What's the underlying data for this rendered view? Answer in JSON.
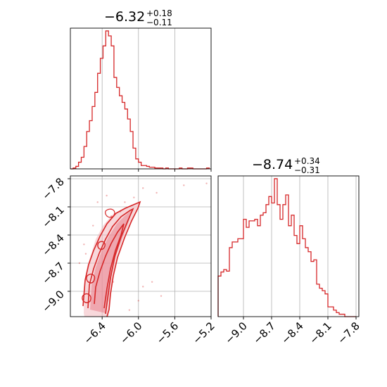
{
  "chart_data": [
    {
      "type": "histogram",
      "panel": "diag-1",
      "title_main": "−6.32",
      "title_sup": "+0.18",
      "title_sub": "−0.11",
      "xlim": [
        -6.75,
        -5.2
      ],
      "xticks": [
        -6.4,
        -6.0,
        -5.6,
        -5.2
      ],
      "color": "#d62728",
      "bins": [
        -6.75,
        -6.72,
        -6.69,
        -6.66,
        -6.63,
        -6.6,
        -6.57,
        -6.54,
        -6.51,
        -6.48,
        -6.45,
        -6.42,
        -6.39,
        -6.36,
        -6.33,
        -6.3,
        -6.27,
        -6.24,
        -6.21,
        -6.18,
        -6.15,
        -6.12,
        -6.09,
        -6.06,
        -6.03,
        -6.0,
        -5.97,
        -5.94,
        -5.91,
        -5.88,
        -5.85,
        -5.82,
        -5.79,
        -5.76,
        -5.73,
        -5.7,
        -5.67,
        -5.64,
        -5.61,
        -5.58,
        -5.55,
        -5.52,
        -5.49,
        -5.46,
        -5.43,
        -5.4,
        -5.37,
        -5.34,
        -5.31,
        -5.28,
        -5.25,
        -5.22
      ],
      "counts": [
        0,
        1,
        3,
        8,
        14,
        27,
        45,
        58,
        75,
        92,
        115,
        133,
        148,
        166,
        160,
        148,
        110,
        98,
        88,
        80,
        72,
        60,
        45,
        25,
        12,
        8,
        4,
        4,
        3,
        2,
        2,
        1,
        1,
        1,
        0,
        1,
        0,
        0,
        0,
        0,
        1,
        0,
        0,
        1,
        1,
        0,
        0,
        0,
        0,
        0,
        1
      ]
    },
    {
      "type": "scatter-contour",
      "panel": "lower-2-1",
      "xlim": [
        -6.75,
        -5.2
      ],
      "ylim": [
        -9.27,
        -7.77
      ],
      "xticks": [
        -6.4,
        -6.0,
        -5.6,
        -5.2
      ],
      "xtick_labels": [
        "−6.4",
        "−6.0",
        "−5.6",
        "−5.2"
      ],
      "yticks": [
        -7.8,
        -8.1,
        -8.4,
        -8.7,
        -9.0
      ],
      "ytick_labels": [
        "−7.8",
        "−8.1",
        "−8.4",
        "−8.7",
        "−9.0"
      ],
      "color": "#d62728",
      "points": [
        [
          -6.05,
          -8.0
        ],
        [
          -5.95,
          -7.9
        ],
        [
          -5.8,
          -7.95
        ],
        [
          -5.5,
          -7.87
        ],
        [
          -5.25,
          -7.85
        ],
        [
          -6.2,
          -8.15
        ],
        [
          -6.3,
          -8.2
        ],
        [
          -6.6,
          -8.5
        ],
        [
          -6.65,
          -8.7
        ],
        [
          -6.55,
          -8.9
        ],
        [
          -6.0,
          -9.1
        ],
        [
          -5.75,
          -9.05
        ],
        [
          -5.95,
          -8.95
        ],
        [
          -6.45,
          -8.05
        ],
        [
          -6.35,
          -7.98
        ],
        [
          -6.15,
          -8.05
        ],
        [
          -6.5,
          -8.3
        ],
        [
          -6.58,
          -8.6
        ],
        [
          -6.28,
          -8.9
        ],
        [
          -6.1,
          -9.2
        ],
        [
          -5.85,
          -8.9
        ]
      ]
    },
    {
      "type": "histogram",
      "panel": "diag-2",
      "title_main": "−8.74",
      "title_sup": "+0.34",
      "title_sub": "−0.31",
      "xlim": [
        -9.27,
        -7.77
      ],
      "xticks": [
        -9.0,
        -8.7,
        -8.4,
        -8.1,
        -7.8
      ],
      "xtick_labels": [
        "−9.0",
        "−8.7",
        "−8.4",
        "−8.1",
        "−7.8"
      ],
      "color": "#d62728",
      "bins": [
        -9.27,
        -9.24,
        -9.21,
        -9.18,
        -9.15,
        -9.12,
        -9.09,
        -9.06,
        -9.03,
        -9.0,
        -8.97,
        -8.94,
        -8.91,
        -8.88,
        -8.85,
        -8.82,
        -8.79,
        -8.76,
        -8.73,
        -8.7,
        -8.67,
        -8.64,
        -8.61,
        -8.58,
        -8.55,
        -8.52,
        -8.49,
        -8.46,
        -8.43,
        -8.4,
        -8.37,
        -8.34,
        -8.31,
        -8.28,
        -8.25,
        -8.22,
        -8.19,
        -8.16,
        -8.13,
        -8.1,
        -8.07,
        -8.04,
        -8.01,
        -7.98,
        -7.95,
        -7.92,
        -7.89,
        -7.86,
        -7.83,
        -7.8
      ],
      "counts": [
        50,
        55,
        58,
        56,
        85,
        92,
        92,
        96,
        96,
        120,
        110,
        118,
        118,
        120,
        112,
        125,
        128,
        138,
        148,
        140,
        170,
        138,
        120,
        138,
        150,
        112,
        125,
        100,
        90,
        112,
        96,
        85,
        80,
        68,
        70,
        40,
        35,
        32,
        28,
        12,
        12,
        8,
        5,
        3,
        3,
        0,
        0,
        0,
        0
      ]
    }
  ]
}
